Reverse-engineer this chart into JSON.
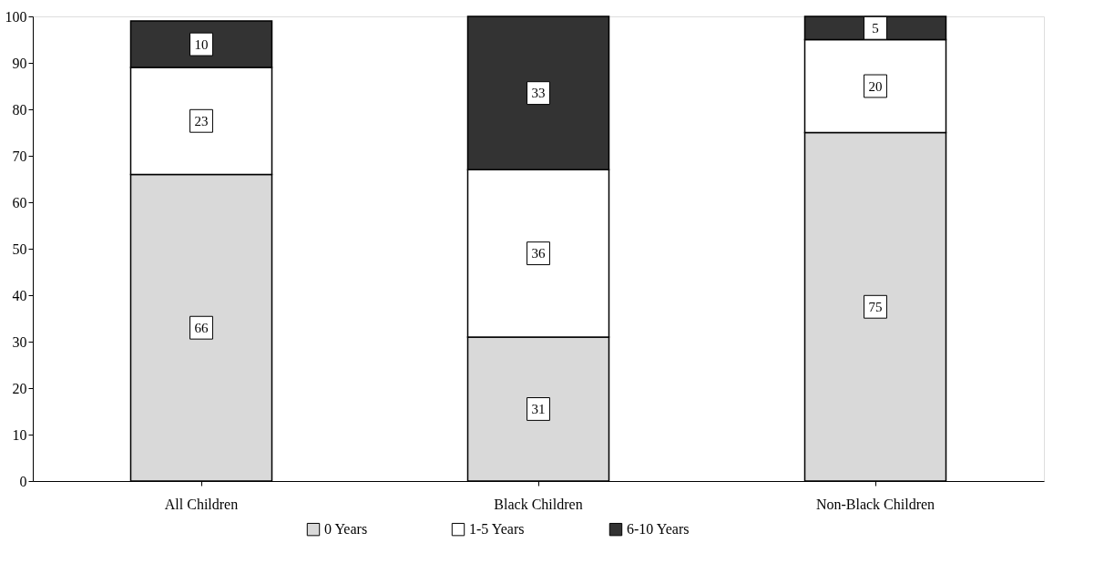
{
  "chart_data": {
    "type": "bar",
    "stacked": true,
    "categories": [
      "All Children",
      "Black Children",
      "Non-Black Children"
    ],
    "series": [
      {
        "name": "0 Years",
        "color": "#d9d9d9",
        "values": [
          66,
          31,
          75
        ]
      },
      {
        "name": "1-5 Years",
        "color": "#ffffff",
        "values": [
          23,
          36,
          20
        ]
      },
      {
        "name": "6-10 Years",
        "color": "#333333",
        "values": [
          10,
          33,
          5
        ]
      }
    ],
    "ylim": [
      0,
      100
    ],
    "yticks": [
      0,
      10,
      20,
      30,
      40,
      50,
      60,
      70,
      80,
      90,
      100
    ],
    "data_labels": true,
    "grid": false,
    "legend": "bottom"
  }
}
